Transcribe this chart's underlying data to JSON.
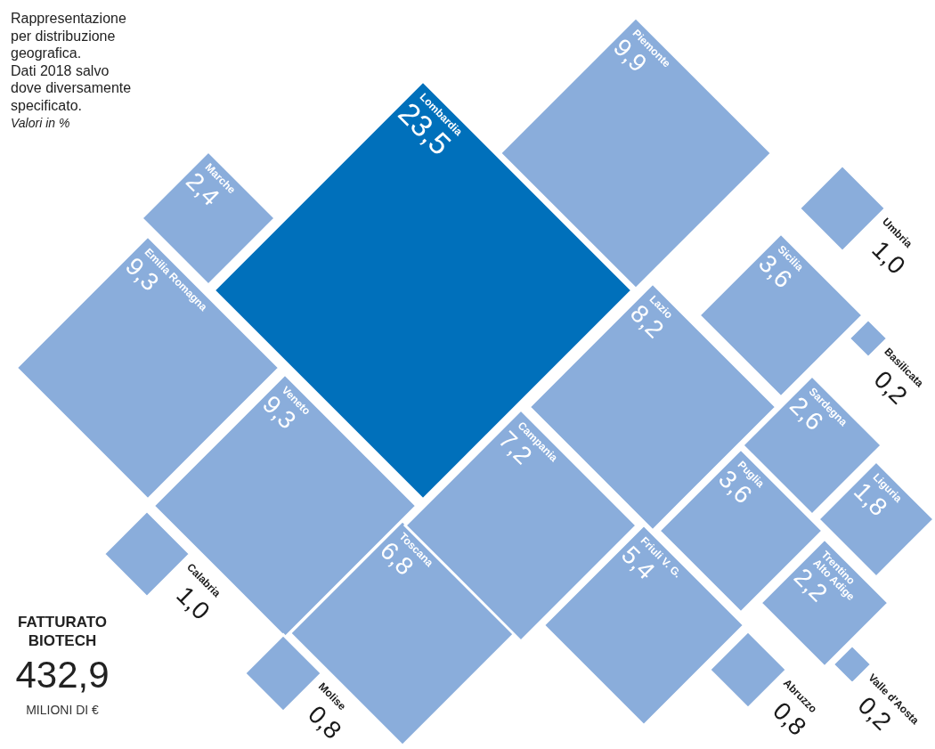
{
  "chart_data": {
    "type": "other",
    "title": "Rappresentazione per distribuzione geografica.",
    "subtitle": "Dati 2018 salvo dove diversamente specificato.",
    "annotations": [
      "Valori in %",
      "FATTURATO BIOTECH",
      "432,9",
      "MILIONI DI €"
    ],
    "categories": [
      "Lombardia",
      "Piemonte",
      "Marche",
      "Emilia Romagna",
      "Veneto",
      "Calabria",
      "Toscana",
      "Molise",
      "Campania",
      "Lazio",
      "Friuli V. G.",
      "Abruzzo",
      "Puglia",
      "Sicilia",
      "Umbria",
      "Basilicata",
      "Sardegna",
      "Liguria",
      "Trentino Alto Adige",
      "Valle d'Aosta"
    ],
    "values": [
      23.5,
      9.9,
      2.4,
      9.3,
      9.3,
      1.0,
      6.8,
      0.8,
      7.2,
      8.2,
      5.4,
      0.8,
      3.6,
      3.6,
      1.0,
      0.2,
      2.6,
      1.8,
      2.2,
      0.2
    ],
    "colors": [
      "#0070bb",
      "#8aaddb",
      "#8aaddb",
      "#8aaddb",
      "#8aaddb",
      "#8aaddb",
      "#8aaddb",
      "#8aaddb",
      "#8aaddb",
      "#8aaddb",
      "#8aaddb",
      "#8aaddb",
      "#8aaddb",
      "#8aaddb",
      "#8aaddb",
      "#8aaddb",
      "#8aaddb",
      "#8aaddb",
      "#8aaddb",
      "#8aaddb"
    ],
    "value_labels": [
      "23,5",
      "9,9",
      "2,4",
      "9,3",
      "9,3",
      "1,0",
      "6,8",
      "0,8",
      "7,2",
      "8,2",
      "5,4",
      "0,8",
      "3,6",
      "3,6",
      "1,0",
      "0,2",
      "2,6",
      "1,8",
      "2,2",
      "0,2"
    ]
  }
}
